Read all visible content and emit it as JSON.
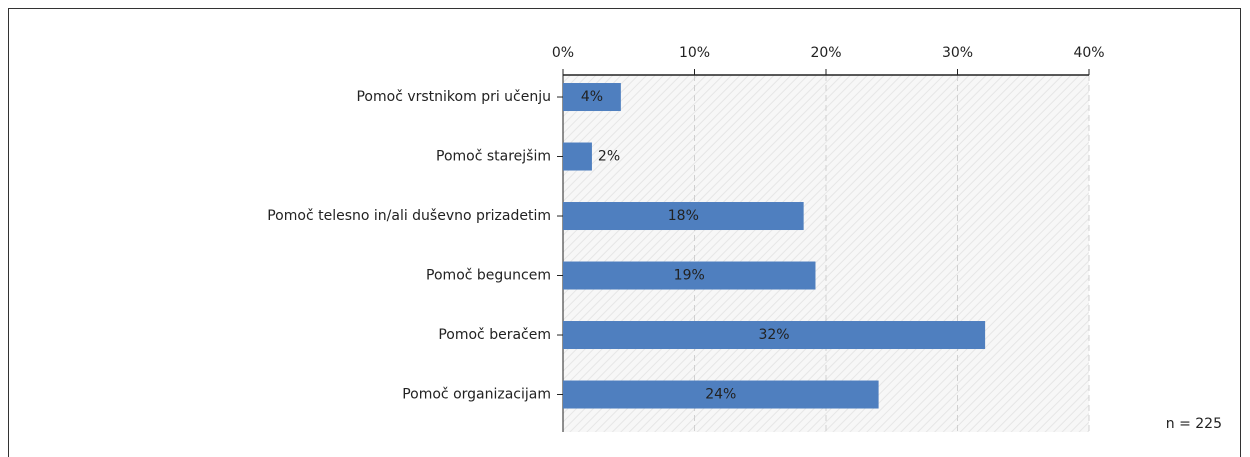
{
  "chart_data": {
    "type": "bar",
    "orientation": "horizontal",
    "categories": [
      "Pomoč vrstnikom pri učenju",
      "Pomoč starejšim",
      "Pomoč telesno in/ali duševno prizadetim",
      "Pomoč beguncem",
      "Pomoč beračem",
      "Pomoč organizacijam"
    ],
    "values": [
      4.4,
      2.2,
      18.3,
      19.2,
      32.1,
      24.0
    ],
    "value_labels": [
      "4%",
      "2%",
      "18%",
      "19%",
      "32%",
      "24%"
    ],
    "color": "#4f7fbf",
    "xlim": [
      0,
      40
    ],
    "xticks": [
      {
        "value": 0,
        "label": "0%"
      },
      {
        "value": 10,
        "label": "10%"
      },
      {
        "value": 20,
        "label": "20%"
      },
      {
        "value": 30,
        "label": "30%"
      },
      {
        "value": 40,
        "label": "40%"
      }
    ],
    "grid": true,
    "annotation": "n = 225"
  }
}
